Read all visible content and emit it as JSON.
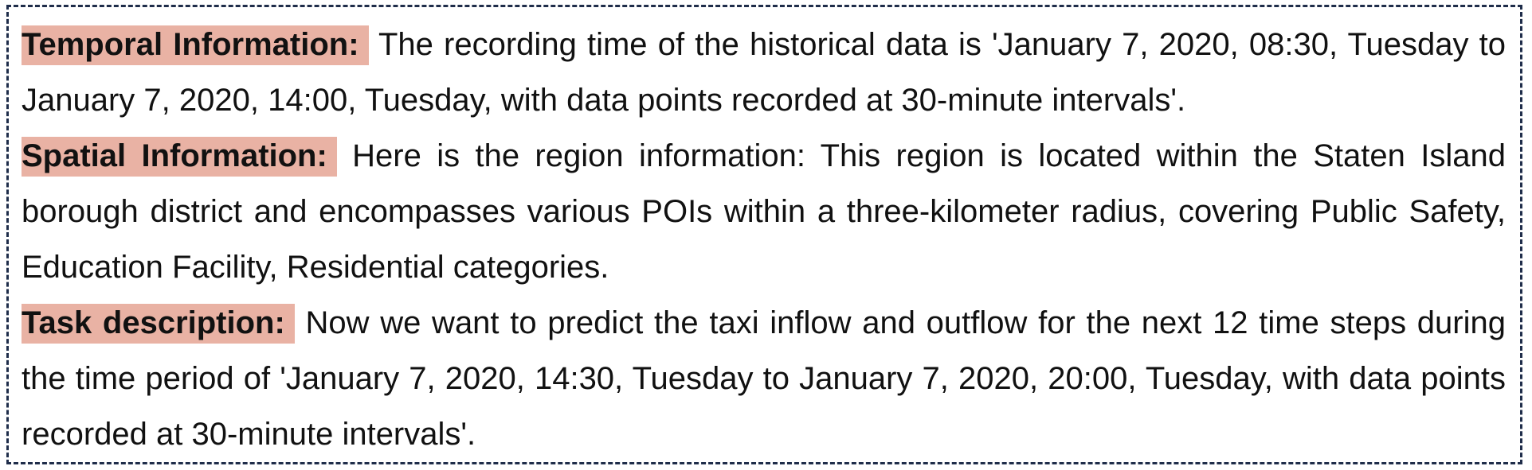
{
  "sections": [
    {
      "label": "Temporal Information:",
      "text": "The recording time of the historical data is 'January 7, 2020, 08:30, Tuesday to January 7, 2020, 14:00, Tuesday, with data points recorded at 30-minute intervals'."
    },
    {
      "label": "Spatial Information:",
      "text": "Here is the region information: This region is located within the Staten Island borough district and encompasses various POIs within a three-kilometer radius, covering Public Safety, Education Facility, Residential categories."
    },
    {
      "label": "Task description:",
      "text": "Now we want to predict the taxi inflow and outflow for the next 12 time steps during the time period of 'January 7, 2020, 14:30, Tuesday to January 7, 2020, 20:00, Tuesday, with data points recorded at 30-minute intervals'."
    }
  ],
  "colors": {
    "label_highlight": "#e9b2a4",
    "border": "#1f2d4a",
    "text": "#111111"
  }
}
